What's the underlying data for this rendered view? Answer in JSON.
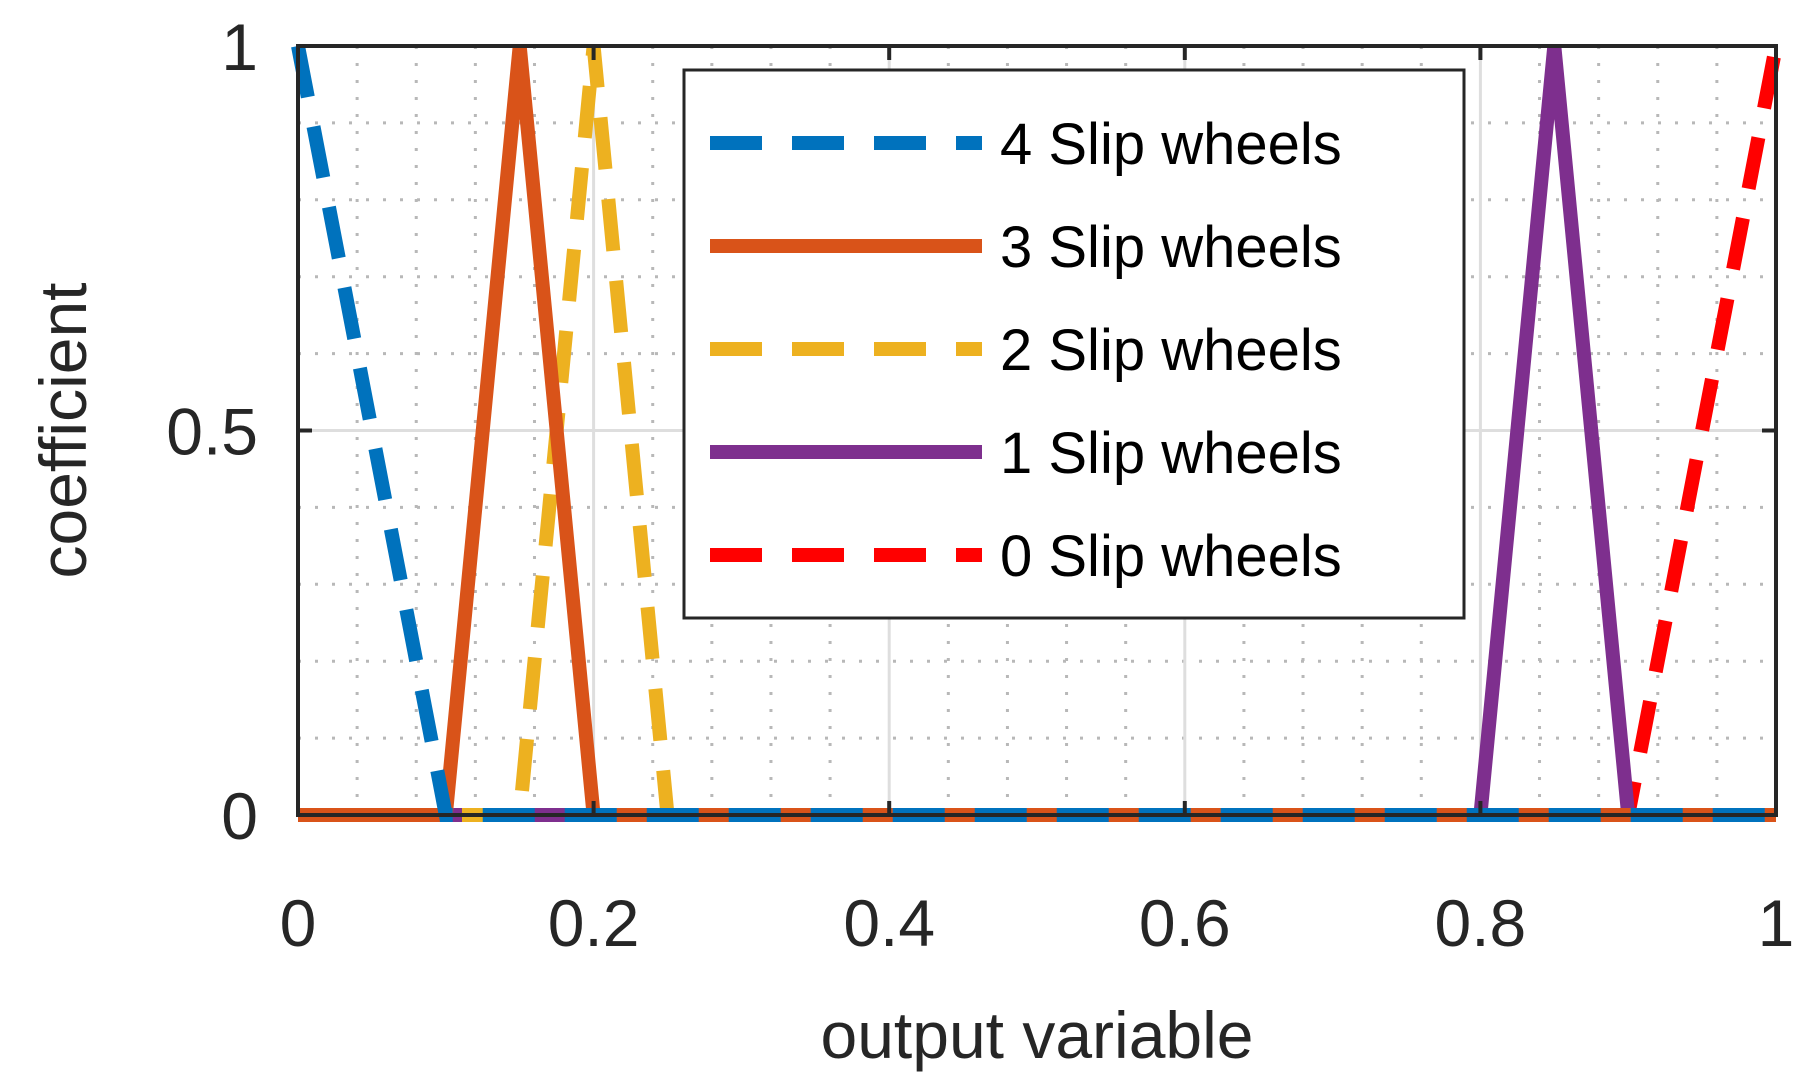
{
  "chart_data": {
    "type": "line",
    "title": "",
    "xlabel": "output variable",
    "ylabel": "coefficient",
    "xlim": [
      0,
      1
    ],
    "ylim": [
      0,
      1
    ],
    "xticks": [
      0,
      0.2,
      0.4,
      0.6,
      0.8,
      1
    ],
    "xtick_labels": [
      "0",
      "0.2",
      "0.4",
      "0.6",
      "0.8",
      "1"
    ],
    "yticks": [
      0,
      0.5,
      1
    ],
    "ytick_labels": [
      "0",
      "0.5",
      "1"
    ],
    "grid": true,
    "minor_grid": true,
    "legend_position": "top-right",
    "series": [
      {
        "name": "4 Slip wheels",
        "color": "#0072BD",
        "style": "dashed",
        "x": [
          0,
          0.1,
          1
        ],
        "y": [
          1,
          0,
          0
        ]
      },
      {
        "name": "3 Slip wheels",
        "color": "#D95319",
        "style": "solid",
        "x": [
          0,
          0.1,
          0.15,
          0.2,
          1
        ],
        "y": [
          0,
          0,
          1,
          0,
          0
        ]
      },
      {
        "name": "2 Slip wheels",
        "color": "#EDB120",
        "style": "dashed",
        "x": [
          0,
          0.15,
          0.2,
          0.25,
          1
        ],
        "y": [
          0,
          0,
          1,
          0,
          0
        ]
      },
      {
        "name": "1 Slip wheels",
        "color": "#7E2F8E",
        "style": "solid",
        "x": [
          0,
          0.8,
          0.85,
          0.9,
          1
        ],
        "y": [
          0,
          0,
          1,
          0,
          0
        ]
      },
      {
        "name": "0 Slip wheels",
        "color": "#FF0000",
        "style": "dashed",
        "x": [
          0,
          0.9,
          1
        ],
        "y": [
          0,
          0,
          1
        ]
      }
    ]
  }
}
